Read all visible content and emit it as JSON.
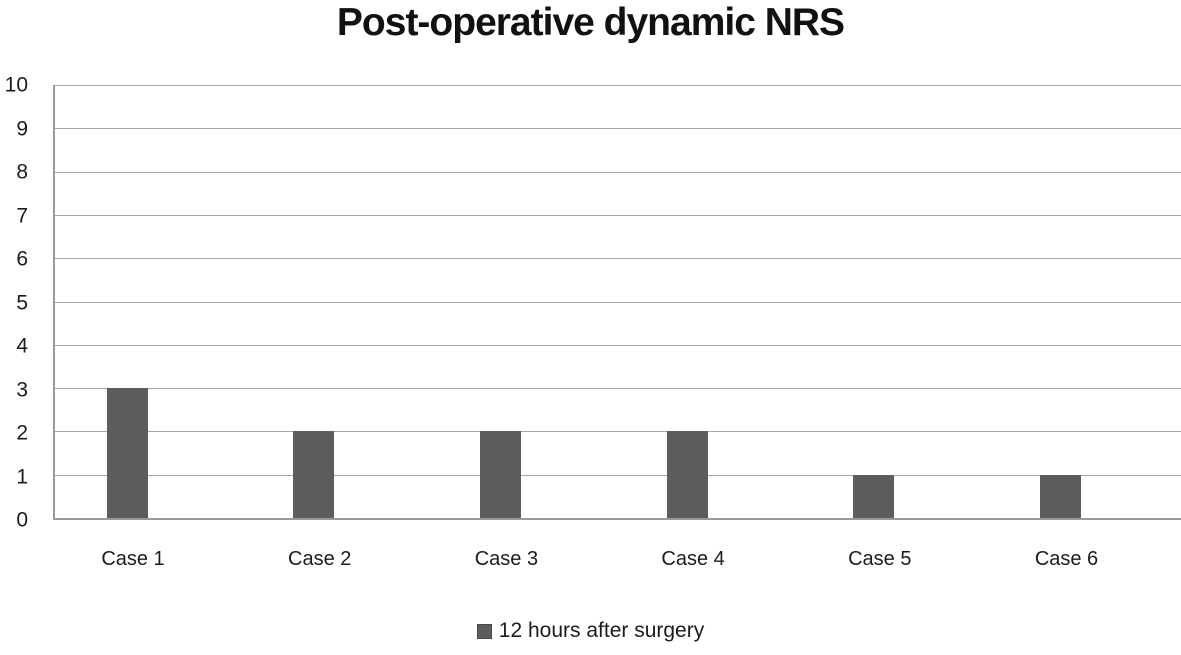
{
  "title": "Post-operative dynamic NRS",
  "colors": {
    "bar": "#5d5d5d",
    "gridline": "#a6a6a6",
    "axis": "#9a9a9a",
    "text": "#1c1c1c",
    "background": "#ffffff"
  },
  "chart_data": {
    "type": "bar",
    "title": "Post-operative dynamic NRS",
    "categories": [
      "Case 1",
      "Case 2",
      "Case 3",
      "Case 4",
      "Case 5",
      "Case 6"
    ],
    "series": [
      {
        "name": "12 hours after surgery",
        "values": [
          3,
          2,
          2,
          2,
          1,
          1
        ]
      }
    ],
    "xlabel": "",
    "ylabel": "",
    "ylim": [
      0,
      10
    ],
    "yticks": [
      0,
      1,
      2,
      3,
      4,
      5,
      6,
      7,
      8,
      9,
      10
    ],
    "grid": true,
    "legend_position": "bottom"
  }
}
